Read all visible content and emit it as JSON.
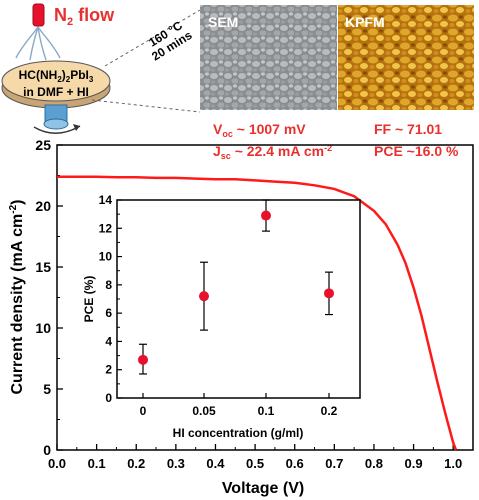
{
  "schematic": {
    "gas_label": "N",
    "gas_sub": "2",
    "gas_suffix": " flow",
    "anneal_temp": "160 °C",
    "anneal_time": "20 mins",
    "solution_line1_a": "HC(NH",
    "solution_line1_b": "2",
    "solution_line1_c": ")",
    "solution_line1_d": "2",
    "solution_line1_e": "PbI",
    "solution_line1_f": "3",
    "solution_line2": "in DMF + HI"
  },
  "micrographs": {
    "sem_label": "SEM",
    "kpfm_label": "KPFM"
  },
  "metrics": {
    "voc_main": "V",
    "voc_sub": "oc",
    "voc_value": " ~ 1007 mV",
    "jsc_main": "J",
    "jsc_sub": "sc",
    "jsc_value": " ~ 22.4 mA cm",
    "jsc_exp": "-2",
    "ff": "FF ~ 71.01",
    "pce": "PCE ~16.0 %"
  },
  "colors": {
    "curve": "#ff1a1a",
    "points": "#e8112d",
    "text_red": "#e8312f",
    "disc": "#f5d9a8"
  },
  "chart_data": [
    {
      "type": "line",
      "title": "",
      "xlabel": "Voltage (V)",
      "ylabel_main": "Current density (mA cm",
      "ylabel_exp": "-2",
      "ylabel_end": ")",
      "xlim": [
        0.0,
        1.05
      ],
      "ylim": [
        0,
        25
      ],
      "x_ticks": [
        "0.0",
        "0.1",
        "0.2",
        "0.3",
        "0.4",
        "0.5",
        "0.6",
        "0.7",
        "0.8",
        "0.9",
        "1.0"
      ],
      "y_ticks": [
        "0",
        "5",
        "10",
        "15",
        "20",
        "25"
      ],
      "series": [
        {
          "x": [
            0.0,
            0.05,
            0.1,
            0.15,
            0.2,
            0.25,
            0.3,
            0.35,
            0.4,
            0.45,
            0.5,
            0.55,
            0.6,
            0.65,
            0.7,
            0.75,
            0.8,
            0.83,
            0.86,
            0.88,
            0.9,
            0.92,
            0.94,
            0.96,
            0.98,
            1.0,
            1.007
          ],
          "y": [
            22.4,
            22.4,
            22.4,
            22.35,
            22.35,
            22.3,
            22.3,
            22.25,
            22.2,
            22.2,
            22.1,
            22.0,
            21.9,
            21.7,
            21.4,
            20.8,
            19.6,
            18.5,
            16.8,
            15.3,
            13.3,
            11.0,
            8.3,
            5.6,
            3.0,
            0.6,
            0.0
          ]
        }
      ]
    },
    {
      "type": "scatter",
      "title": "",
      "xlabel": "HI concentration (g/ml)",
      "ylabel": "PCE (%)",
      "categories": [
        "0",
        "0.05",
        "0.1",
        "0.2"
      ],
      "ylim": [
        0,
        14
      ],
      "y_ticks": [
        "0",
        "2",
        "4",
        "6",
        "8",
        "10",
        "12",
        "14"
      ],
      "values": [
        2.7,
        7.2,
        12.9,
        7.4
      ],
      "err_low": [
        1.7,
        4.8,
        11.8,
        5.9
      ],
      "err_high": [
        3.8,
        9.6,
        14.0,
        8.9
      ]
    }
  ]
}
